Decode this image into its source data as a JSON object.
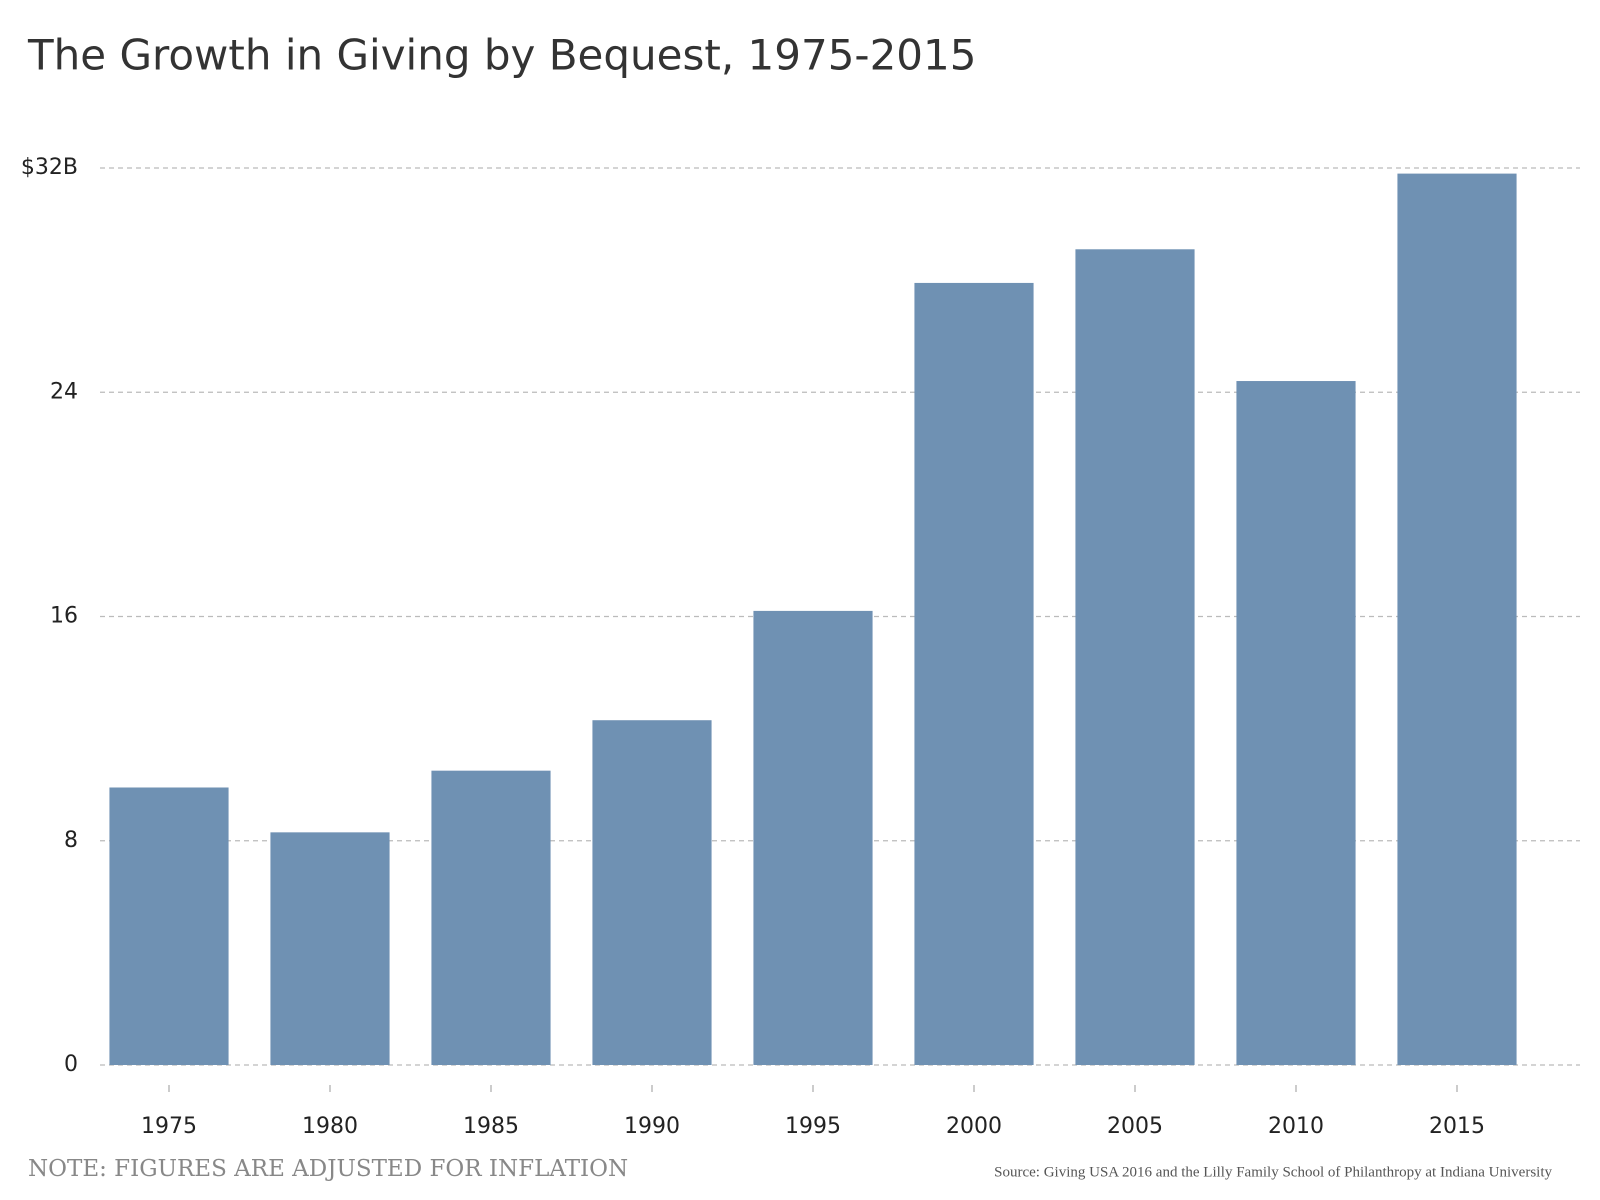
{
  "chart_data": {
    "type": "bar",
    "title": "The Growth in Giving by Bequest, 1975-2015",
    "categories": [
      "1975",
      "1980",
      "1985",
      "1990",
      "1995",
      "2000",
      "2005",
      "2010",
      "2015"
    ],
    "values": [
      9.9,
      8.3,
      10.5,
      12.3,
      16.2,
      27.9,
      29.1,
      24.4,
      31.8
    ],
    "color": "#6f91b3",
    "ylim": [
      0,
      32
    ],
    "yticks": [
      0,
      8,
      16,
      24,
      {
        "value": 32,
        "label": "$32B"
      }
    ],
    "grid": true,
    "note": "NOTE: FIGURES ARE ADJUSTED FOR INFLATION",
    "source": "Source: Giving USA 2016 and the Lilly Family School of Philanthropy at Indiana University"
  }
}
